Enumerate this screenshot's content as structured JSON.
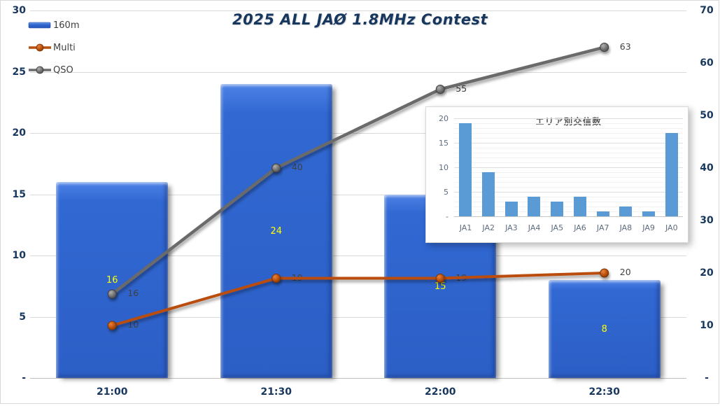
{
  "title": "2025 ALL JAØ 1.8MHz Contest",
  "legend": {
    "items": [
      {
        "label": "160m"
      },
      {
        "label": "Multi"
      },
      {
        "label": "QSO"
      }
    ]
  },
  "colors": {
    "title_text": "#17375E",
    "axis_text": "#17375E",
    "bar_fill": "#2F64C9",
    "bar_label": "#FFFF00",
    "multi_line": "#BA4E0D",
    "qso_line": "#6B6B6B",
    "line_label": "#404040",
    "inset_bar": "#5B9BD5",
    "gridline": "#D9D9D9"
  },
  "chart_data": [
    {
      "name": "hourly-progress-chart",
      "type": "combo",
      "title": "2025 ALL JAØ 1.8MHz Contest",
      "categories": [
        "21:00",
        "21:30",
        "22:00",
        "22:30"
      ],
      "series": [
        {
          "name": "160m",
          "type": "bar",
          "axis": "left",
          "values": [
            16,
            24,
            15,
            8
          ]
        },
        {
          "name": "Multi",
          "type": "line",
          "axis": "right",
          "values": [
            10,
            19,
            19,
            20
          ],
          "color": "#BA4E0D"
        },
        {
          "name": "QSO",
          "type": "line",
          "axis": "right",
          "values": [
            16,
            40,
            55,
            63
          ],
          "color": "#6B6B6B"
        }
      ],
      "left_axis": {
        "min": 0,
        "max": 30,
        "step": 5,
        "tick_labels": [
          "-",
          "5",
          "10",
          "15",
          "20",
          "25",
          "30"
        ]
      },
      "right_axis": {
        "min": 0,
        "max": 70,
        "step": 10,
        "tick_labels": [
          "-",
          "10",
          "20",
          "30",
          "40",
          "50",
          "60",
          "70"
        ]
      },
      "grid": "horizontal-major",
      "legend_position": "top-left"
    },
    {
      "name": "area-breakdown-chart",
      "type": "bar",
      "title": "エリア別交信数",
      "categories": [
        "JA1",
        "JA2",
        "JA3",
        "JA4",
        "JA5",
        "JA6",
        "JA7",
        "JA8",
        "JA9",
        "JA0"
      ],
      "values": [
        19,
        9,
        3,
        4,
        3,
        4,
        1,
        2,
        1,
        17
      ],
      "y_axis": {
        "min": 0,
        "max": 20,
        "step": 5,
        "tick_labels": [
          "-",
          "5",
          "10",
          "15",
          "20"
        ]
      },
      "grid": "horizontal-minor"
    }
  ]
}
